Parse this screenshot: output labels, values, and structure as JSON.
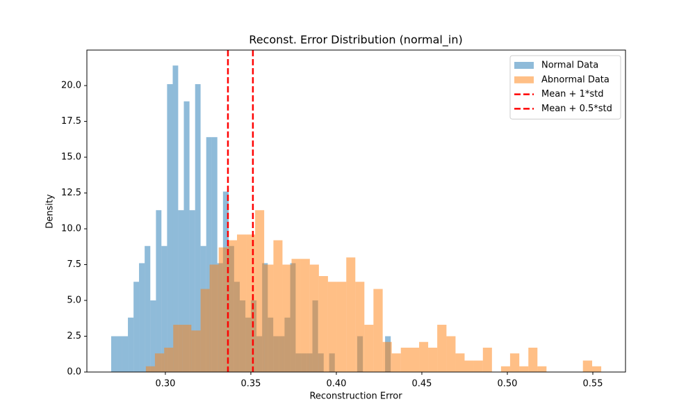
{
  "chart_data": {
    "type": "histogram",
    "title": "Reconst. Error Distribution (normal_in)",
    "xlabel": "Reconstruction Error",
    "ylabel": "Density",
    "xlim": [
      0.2541,
      0.5691
    ],
    "ylim": [
      0,
      22.48
    ],
    "xticks": [
      {
        "value": 0.3,
        "label": "0.30"
      },
      {
        "value": 0.35,
        "label": "0.35"
      },
      {
        "value": 0.4,
        "label": "0.40"
      },
      {
        "value": 0.45,
        "label": "0.45"
      },
      {
        "value": 0.5,
        "label": "0.50"
      },
      {
        "value": 0.55,
        "label": "0.55"
      }
    ],
    "yticks": [
      {
        "value": 0,
        "label": "0.0"
      },
      {
        "value": 2.5,
        "label": "2.5"
      },
      {
        "value": 5,
        "label": "5.0"
      },
      {
        "value": 7.5,
        "label": "7.5"
      },
      {
        "value": 10,
        "label": "10.0"
      },
      {
        "value": 12.5,
        "label": "12.5"
      },
      {
        "value": 15,
        "label": "15.0"
      },
      {
        "value": 17.5,
        "label": "17.5"
      },
      {
        "value": 20,
        "label": "20.0"
      }
    ],
    "legend": "upper right",
    "series": [
      {
        "name": "Normal Data",
        "color": "#1f77b4",
        "alpha": 0.5,
        "bins": [
          0.2683,
          0.2716,
          0.2748,
          0.2781,
          0.2814,
          0.2846,
          0.2879,
          0.2912,
          0.2945,
          0.2977,
          0.301,
          0.3043,
          0.3075,
          0.3108,
          0.3141,
          0.3174,
          0.3206,
          0.3239,
          0.3272,
          0.3304,
          0.3337,
          0.337,
          0.3402,
          0.3435,
          0.3468,
          0.3501,
          0.3533,
          0.3566,
          0.3599,
          0.3631,
          0.3664,
          0.3697,
          0.373,
          0.3762,
          0.3795,
          0.3828,
          0.386,
          0.3893,
          0.3926,
          0.3958,
          0.3991,
          0.4024,
          0.4057,
          0.4089,
          0.4122,
          0.4155,
          0.4187,
          0.422,
          0.4253,
          0.4285,
          0.4318
        ],
        "values": [
          2.5,
          2.5,
          2.5,
          3.8,
          6.3,
          7.6,
          8.8,
          5.0,
          11.3,
          8.8,
          20.1,
          21.4,
          11.3,
          18.9,
          11.3,
          20.1,
          8.8,
          16.4,
          16.4,
          7.6,
          12.6,
          8.8,
          6.3,
          5.0,
          3.8,
          5.0,
          2.5,
          7.6,
          3.8,
          2.5,
          2.5,
          3.8,
          7.6,
          1.3,
          1.3,
          1.3,
          5.0,
          1.3,
          0,
          1.3,
          0,
          0,
          0,
          0,
          2.5,
          0,
          0,
          0,
          0,
          2.5
        ]
      },
      {
        "name": "Abnormal Data",
        "color": "#ff7f0e",
        "alpha": 0.5,
        "bins": [
          0.2886,
          0.2939,
          0.2993,
          0.3046,
          0.3099,
          0.3152,
          0.3206,
          0.3259,
          0.3312,
          0.3365,
          0.3419,
          0.3472,
          0.3525,
          0.3578,
          0.3632,
          0.3685,
          0.3738,
          0.3791,
          0.3845,
          0.3898,
          0.3951,
          0.4004,
          0.4058,
          0.4111,
          0.4164,
          0.4217,
          0.4271,
          0.4324,
          0.4377,
          0.4431,
          0.4484,
          0.4537,
          0.459,
          0.4644,
          0.4697,
          0.475,
          0.4803,
          0.4857,
          0.491,
          0.4963,
          0.5016,
          0.507,
          0.5123,
          0.5176,
          0.5229,
          0.5283,
          0.5336,
          0.5389,
          0.5442,
          0.5496,
          0.5549
        ],
        "values": [
          0.4,
          1.3,
          1.7,
          3.3,
          3.3,
          2.9,
          5.8,
          7.5,
          8.7,
          9.2,
          9.6,
          9.6,
          11.3,
          7.5,
          9.2,
          7.5,
          7.9,
          7.9,
          7.5,
          6.7,
          6.3,
          6.3,
          8.0,
          6.3,
          3.3,
          5.8,
          2.1,
          1.3,
          1.7,
          1.7,
          2.1,
          1.7,
          3.3,
          2.5,
          1.3,
          0.8,
          0.8,
          1.7,
          0,
          0.4,
          1.3,
          0.4,
          1.7,
          0.4,
          0,
          0,
          0,
          0,
          0.8,
          0.4
        ]
      }
    ],
    "vlines": [
      {
        "name": "Mean + 1*std",
        "x": 0.3366,
        "color": "#ff0000",
        "dashed": true
      },
      {
        "name": "Mean + 0.5*std",
        "x": 0.3512,
        "color": "#ff0000",
        "dashed": true
      }
    ]
  }
}
